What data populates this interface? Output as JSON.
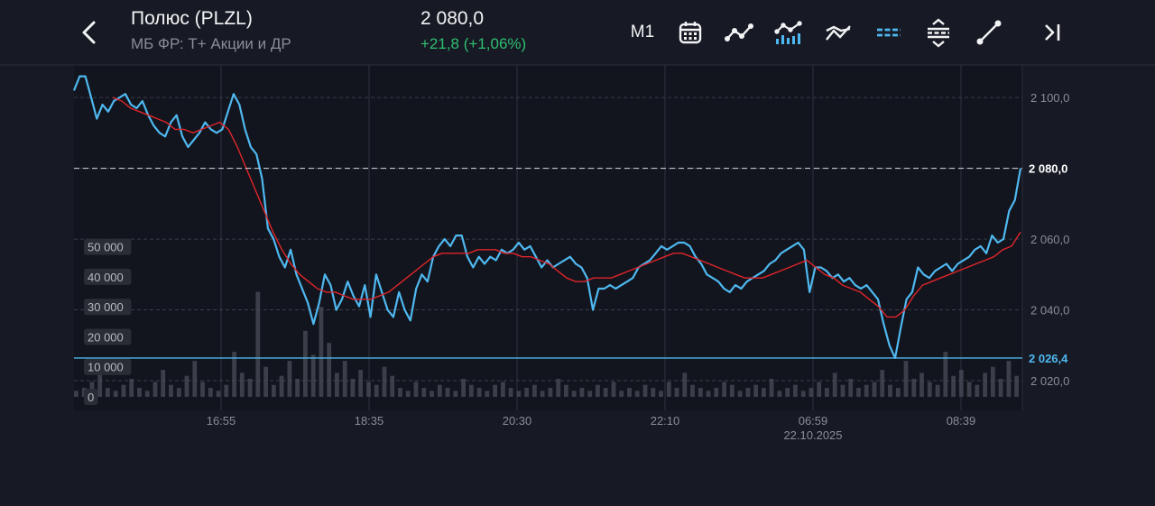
{
  "header": {
    "title": "Полюс (PLZL)",
    "subtitle": "МБ ФР: Т+ Акции и ДР",
    "price": "2 080,0",
    "change": "+21,8 (+1,06%)"
  },
  "toolbar": {
    "timeframe": "M1",
    "icons": [
      "calendar-icon",
      "line-chart-icon",
      "volume-chart-icon",
      "indicators-icon",
      "horizontal-line-icon",
      "levels-icon",
      "trendline-icon",
      "scroll-to-end-icon"
    ]
  },
  "colors": {
    "price_line": "#4fb8f0",
    "ma_line": "#e0252b",
    "positive": "#2fbf71",
    "background": "#171a24"
  },
  "chart_data": {
    "type": "line",
    "x_tick_labels": [
      "16:55",
      "18:35",
      "20:30",
      "22:10",
      "06:59",
      "08:39"
    ],
    "date_label": "22.10.2025",
    "y_tick_labels": [
      "2 100,0",
      "2 080,0",
      "2 060,0",
      "2 040,0",
      "2 020,0"
    ],
    "y_ticks": [
      2100,
      2080,
      2060,
      2040,
      2020
    ],
    "ylim": [
      2011.6,
      2109.2
    ],
    "current_price": 2080.0,
    "current_price_label": "2 080,0",
    "low_price": 2026.4,
    "low_price_label": "2 026,4",
    "volume_tick_labels": [
      "50 000",
      "40 000",
      "30 000",
      "20 000",
      "10 000",
      "0"
    ],
    "volume_ticks": [
      50000,
      40000,
      30000,
      20000,
      10000,
      0
    ],
    "volume_ylim": [
      0,
      52000
    ],
    "grid": true,
    "series": [
      {
        "style": "price",
        "values": [
          2102,
          2106,
          2106,
          2100,
          2094,
          2098,
          2096,
          2099,
          2100,
          2101,
          2098,
          2097,
          2099,
          2095,
          2092,
          2090,
          2089,
          2093,
          2095,
          2089,
          2086,
          2088,
          2090,
          2093,
          2091,
          2090,
          2091,
          2096,
          2101,
          2098,
          2091,
          2086,
          2084,
          2077,
          2063,
          2060,
          2055,
          2052,
          2057,
          2050,
          2046,
          2042,
          2036,
          2042,
          2050,
          2047,
          2040,
          2043,
          2048,
          2044,
          2041,
          2047,
          2038,
          2050,
          2045,
          2040,
          2038,
          2045,
          2040,
          2037,
          2046,
          2050,
          2048,
          2055,
          2058,
          2060,
          2058,
          2061,
          2061,
          2055,
          2052,
          2055,
          2053,
          2055,
          2054,
          2057,
          2056,
          2057,
          2059,
          2057,
          2058,
          2055,
          2052,
          2054,
          2052,
          2053,
          2054,
          2055,
          2053,
          2052,
          2049,
          2040,
          2046,
          2046,
          2047,
          2046,
          2047,
          2048,
          2049,
          2052,
          2053,
          2054,
          2056,
          2058,
          2057,
          2058,
          2059,
          2059,
          2058,
          2055,
          2053,
          2050,
          2049,
          2048,
          2046,
          2045,
          2047,
          2046,
          2048,
          2049,
          2050,
          2051,
          2053,
          2054,
          2056,
          2057,
          2058,
          2059,
          2057,
          2045,
          2052,
          2052,
          2051,
          2049,
          2050,
          2048,
          2049,
          2047,
          2046,
          2047,
          2045,
          2043,
          2036,
          2030,
          2026.4,
          2035,
          2043,
          2045,
          2052,
          2050,
          2049,
          2051,
          2052,
          2053,
          2051,
          2053,
          2054,
          2055,
          2057,
          2058,
          2056,
          2061,
          2059,
          2060,
          2068,
          2071,
          2080
        ]
      },
      {
        "style": "moving_average",
        "values": [
          2100,
          2099,
          2097,
          2096,
          2095,
          2094,
          2093,
          2091,
          2091,
          2090,
          2091,
          2092,
          2093,
          2091,
          2086,
          2080,
          2074,
          2068,
          2062,
          2057,
          2053,
          2050,
          2048,
          2046,
          2045,
          2045,
          2044,
          2043,
          2043,
          2043,
          2044,
          2045,
          2047,
          2049,
          2051,
          2053,
          2055,
          2056,
          2056,
          2056,
          2056,
          2057,
          2057,
          2057,
          2056,
          2056,
          2055,
          2055,
          2054,
          2053,
          2051,
          2049,
          2048,
          2048,
          2049,
          2049,
          2049,
          2050,
          2051,
          2052,
          2053,
          2054,
          2055,
          2056,
          2056,
          2055,
          2054,
          2053,
          2052,
          2051,
          2050,
          2049,
          2049,
          2049,
          2050,
          2051,
          2052,
          2053,
          2054,
          2052,
          2050,
          2049,
          2047,
          2046,
          2045,
          2043,
          2041,
          2038,
          2038,
          2040,
          2044,
          2047,
          2048,
          2049,
          2050,
          2051,
          2052,
          2053,
          2054,
          2055,
          2057,
          2058,
          2062
        ]
      }
    ],
    "volume": [
      2000,
      3000,
      5000,
      8000,
      3000,
      2000,
      4000,
      6000,
      3000,
      2000,
      5000,
      9000,
      4000,
      3000,
      7000,
      12000,
      5000,
      3000,
      2000,
      4000,
      15000,
      8000,
      6000,
      35000,
      10000,
      4000,
      7000,
      12000,
      6000,
      22000,
      14000,
      30000,
      18000,
      8000,
      12000,
      6000,
      9000,
      5000,
      4000,
      10000,
      7000,
      3000,
      2000,
      5000,
      3000,
      2000,
      4000,
      3000,
      2000,
      6000,
      4000,
      3000,
      2000,
      4000,
      5000,
      3000,
      2000,
      3000,
      4000,
      2000,
      3000,
      6000,
      4000,
      2000,
      3000,
      2000,
      4000,
      3000,
      5000,
      2000,
      3000,
      2000,
      4000,
      3000,
      2000,
      5000,
      3000,
      8000,
      4000,
      3000,
      2000,
      3000,
      5000,
      4000,
      2000,
      3000,
      4000,
      3000,
      6000,
      2000,
      3000,
      4000,
      2000,
      3000,
      5000,
      3000,
      8000,
      4000,
      6000,
      3000,
      4000,
      5000,
      9000,
      4000,
      3000,
      12000,
      6000,
      8000,
      5000,
      4000,
      15000,
      7000,
      9000,
      5000,
      4000,
      8000,
      10000,
      6000,
      12000,
      7000
    ]
  }
}
